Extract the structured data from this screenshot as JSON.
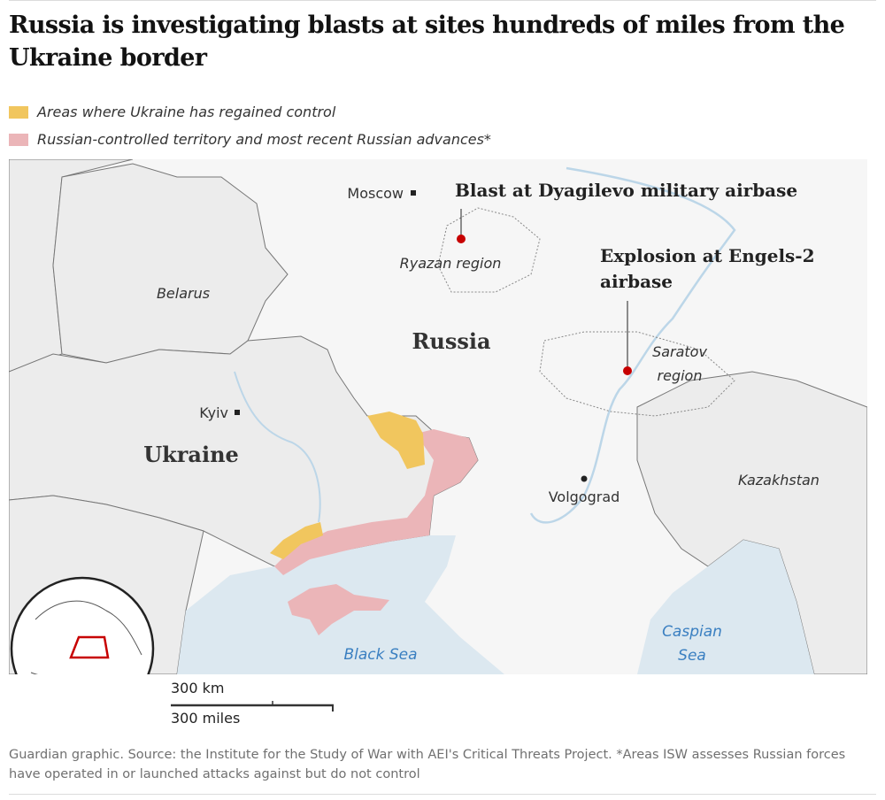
{
  "title": "Russia is investigating blasts at sites hundreds of miles from the Ukraine border",
  "legend": [
    {
      "label": "Areas where Ukraine has regained control",
      "color": "#f1c65e"
    },
    {
      "label": "Russian-controlled territory and most recent Russian advances*",
      "color": "#ebb5b8"
    }
  ],
  "map": {
    "countries": {
      "belarus": "Belarus",
      "russia": "Russia",
      "ukraine": "Ukraine",
      "kazakhstan": "Kazakhstan"
    },
    "cities": {
      "moscow": "Moscow",
      "kyiv": "Kyiv",
      "volgograd": "Volgograd"
    },
    "regions": {
      "ryazan": "Ryazan region",
      "saratov_1": "Saratov",
      "saratov_2": "region"
    },
    "seas": {
      "black": "Black Sea",
      "caspian_1": "Caspian",
      "caspian_2": "Sea"
    },
    "annotations": {
      "dyagilevo": "Blast at Dyagilevo military airbase",
      "engels_1": "Explosion at Engels-2",
      "engels_2": "airbase"
    },
    "colors": {
      "blast_marker": "#c70000",
      "sea": "#dce8f0",
      "land": "#ececec",
      "russia": "#f6f6f6"
    }
  },
  "scale": {
    "km": "300 km",
    "miles": "300 miles"
  },
  "footer": "Guardian graphic. Source: the Institute for the Study of War with AEI's Critical Threats Project. *Areas ISW assesses Russian forces have operated in or launched attacks against but do not control"
}
